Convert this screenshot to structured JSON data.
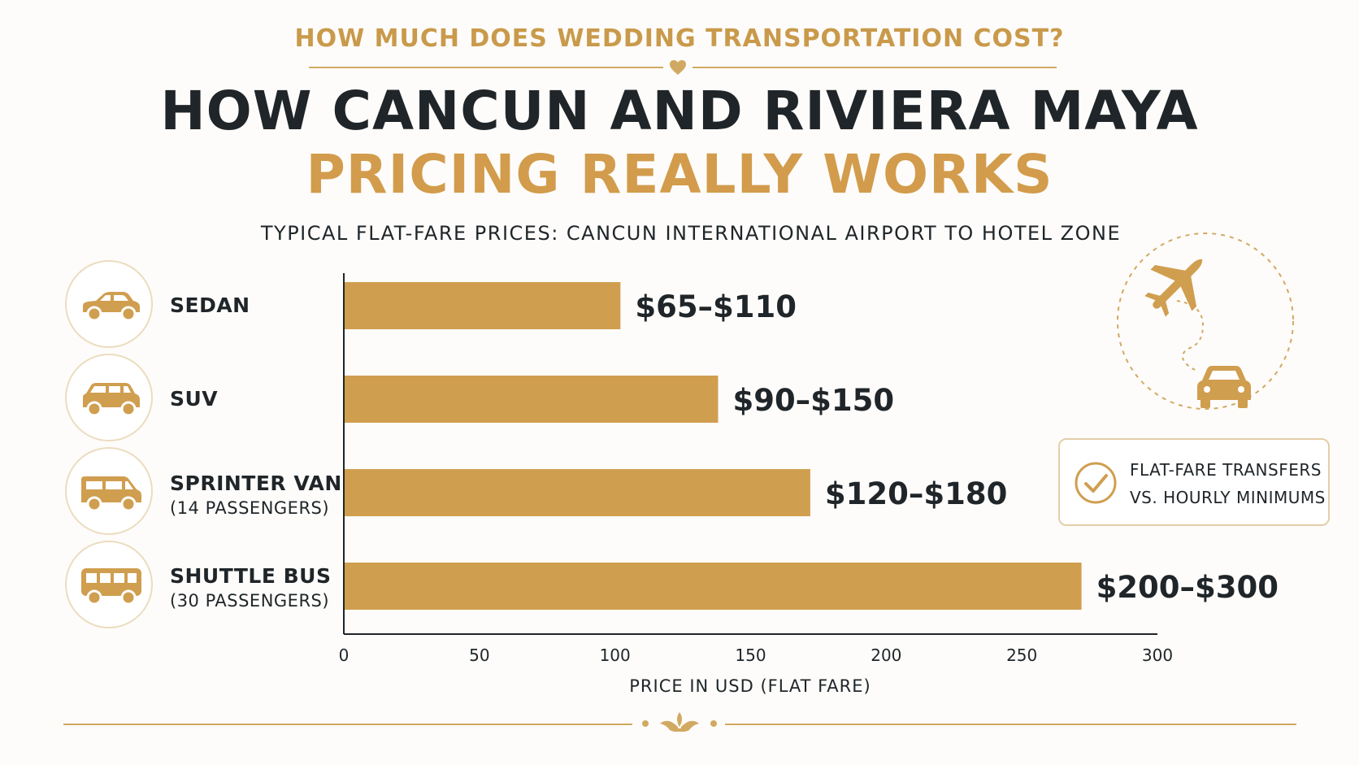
{
  "header": {
    "kicker": "HOW MUCH DOES WEDDING TRANSPORTATION COST?",
    "title_line1": "HOW CANCUN AND RIVIERA MAYA",
    "title_line2": "PRICING REALLY WORKS",
    "subtitle": "TYPICAL FLAT-FARE PRICES: CANCUN INTERNATIONAL AIRPORT TO HOTEL ZONE"
  },
  "categories_panel": [
    {
      "label": "SEDAN",
      "sub": "",
      "icon": "sedan-icon"
    },
    {
      "label": "SUV",
      "sub": "",
      "icon": "suv-icon"
    },
    {
      "label": "SPRINTER VAN",
      "sub": "(14 PASSENGERS)",
      "icon": "van-icon"
    },
    {
      "label": "SHUTTLE BUS",
      "sub": "(30 PASSENGERS)",
      "icon": "bus-icon"
    }
  ],
  "callout": {
    "line1": "FLAT-FARE TRANSFERS",
    "line2": "VS. HOURLY MINIMUMS",
    "icon": "check-circle-icon"
  },
  "decor": {
    "top_icon": "heart-icon",
    "route_icons": [
      "airplane-icon",
      "car-icon"
    ],
    "footer_icon": "fleur-de-lis-icon"
  },
  "colors": {
    "accent": "#d29c4c",
    "bar": "#d09e4f",
    "dark": "#1f2529"
  },
  "chart_data": {
    "type": "bar",
    "orientation": "horizontal",
    "categories": [
      "SEDAN",
      "SUV",
      "SPRINTER VAN",
      "SHUTTLE BUS"
    ],
    "values": [
      102,
      138,
      172,
      272
    ],
    "data_labels": [
      "$65–$110",
      "$90–$150",
      "$120–$180",
      "$200–$300"
    ],
    "xlabel": "PRICE IN USD (FLAT FARE)",
    "xlim": [
      0,
      300
    ],
    "xticks": [
      0,
      50,
      100,
      150,
      200,
      250,
      300
    ],
    "grid": false,
    "legend": "none"
  }
}
